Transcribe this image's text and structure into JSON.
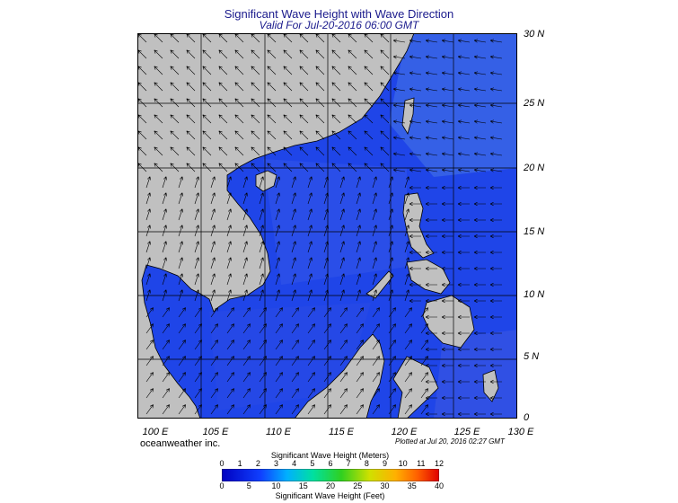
{
  "header": {
    "title": "Significant Wave Height with Wave Direction",
    "subtitle": "Valid For Jul-20-2016 06:00 GMT"
  },
  "map": {
    "lat_labels": [
      "30 N",
      "25 N",
      "20 N",
      "15 N",
      "10 N",
      "5 N",
      "0"
    ],
    "lon_labels": [
      "100 E",
      "105 E",
      "110 E",
      "115 E",
      "120 E",
      "125 E",
      "130 E"
    ],
    "colors": {
      "land": "#c0c0c0",
      "sea_low": "#1a3fe6",
      "sea_mid": "#2f55e8",
      "sea_high": "#3f6ae6",
      "grid": "#000000"
    }
  },
  "footer": {
    "credit": "oceanweather inc.",
    "plotted": "Plotted at Jul 20, 2016 02:27 GMT"
  },
  "colorbar": {
    "title_meters": "Significant Wave Height (Meters)",
    "title_feet": "Significant Wave Height (Feet)",
    "meter_ticks": [
      "0",
      "1",
      "2",
      "3",
      "4",
      "5",
      "6",
      "7",
      "8",
      "9",
      "10",
      "11",
      "12"
    ],
    "feet_ticks": [
      "0",
      "5",
      "10",
      "15",
      "20",
      "25",
      "30",
      "35",
      "40"
    ]
  }
}
